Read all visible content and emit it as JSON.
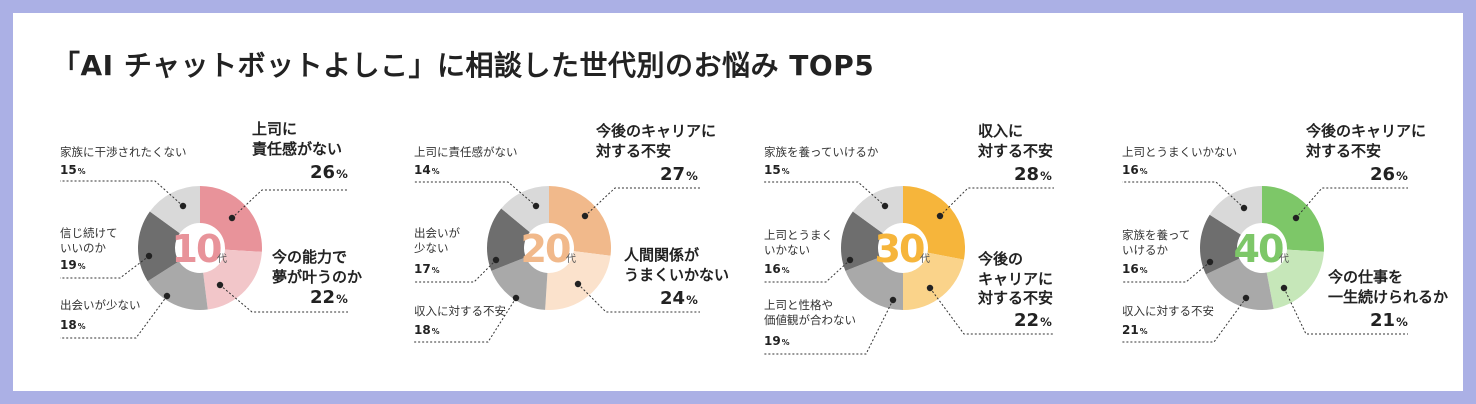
{
  "title": "「AI チャットボットよしこ」に相談した世代別のお悩み TOP5",
  "colors": {
    "border": "#abb0e5"
  },
  "chart_data": [
    {
      "type": "pie",
      "title": "10代",
      "center_number": "10",
      "center_suffix": "代",
      "accent": "#e8939a",
      "slices": [
        {
          "label": "上司に\n責任感がない",
          "value": 26,
          "color": "#e8939a",
          "emphasis": true
        },
        {
          "label": "今の能力で\n夢が叶うのか",
          "value": 22,
          "color": "#f2c6c9",
          "emphasis": true
        },
        {
          "label": "出会いが少ない",
          "value": 18,
          "color": "#a9a9a9",
          "emphasis": false
        },
        {
          "label": "信じ続けて\nいいのか",
          "value": 19,
          "color": "#6e6e6e",
          "emphasis": false
        },
        {
          "label": "家族に干渉されたくない",
          "value": 15,
          "color": "#d9d9d9",
          "emphasis": false
        }
      ]
    },
    {
      "type": "pie",
      "title": "20代",
      "center_number": "20",
      "center_suffix": "代",
      "accent": "#f1b98b",
      "slices": [
        {
          "label": "今後のキャリアに\n対する不安",
          "value": 27,
          "color": "#f1b98b",
          "emphasis": true
        },
        {
          "label": "人間関係が\nうまくいかない",
          "value": 24,
          "color": "#fbe2cc",
          "emphasis": true
        },
        {
          "label": "収入に対する不安",
          "value": 18,
          "color": "#a9a9a9",
          "emphasis": false
        },
        {
          "label": "出会いが\n少ない",
          "value": 17,
          "color": "#6e6e6e",
          "emphasis": false
        },
        {
          "label": "上司に責任感がない",
          "value": 14,
          "color": "#d9d9d9",
          "emphasis": false
        }
      ]
    },
    {
      "type": "pie",
      "title": "30代",
      "center_number": "30",
      "center_suffix": "代",
      "accent": "#f6b53b",
      "slices": [
        {
          "label": "収入に\n対する不安",
          "value": 28,
          "color": "#f6b53b",
          "emphasis": true
        },
        {
          "label": "今後の\nキャリアに\n対する不安",
          "value": 22,
          "color": "#fad38a",
          "emphasis": true
        },
        {
          "label": "上司と性格や\n価値観が合わない",
          "value": 19,
          "color": "#a9a9a9",
          "emphasis": false
        },
        {
          "label": "上司とうまく\nいかない",
          "value": 16,
          "color": "#6e6e6e",
          "emphasis": false
        },
        {
          "label": "家族を養っていけるか",
          "value": 15,
          "color": "#d9d9d9",
          "emphasis": false
        }
      ]
    },
    {
      "type": "pie",
      "title": "40代",
      "center_number": "40",
      "center_suffix": "代",
      "accent": "#7dc768",
      "slices": [
        {
          "label": "今後のキャリアに\n対する不安",
          "value": 26,
          "color": "#7dc768",
          "emphasis": true
        },
        {
          "label": "今の仕事を\n一生続けられるか",
          "value": 21,
          "color": "#c6e7b9",
          "emphasis": true
        },
        {
          "label": "収入に対する不安",
          "value": 21,
          "color": "#a9a9a9",
          "emphasis": false
        },
        {
          "label": "家族を養って\nいけるか",
          "value": 16,
          "color": "#6e6e6e",
          "emphasis": false
        },
        {
          "label": "上司とうまくいかない",
          "value": 16,
          "color": "#d9d9d9",
          "emphasis": false
        }
      ]
    }
  ]
}
